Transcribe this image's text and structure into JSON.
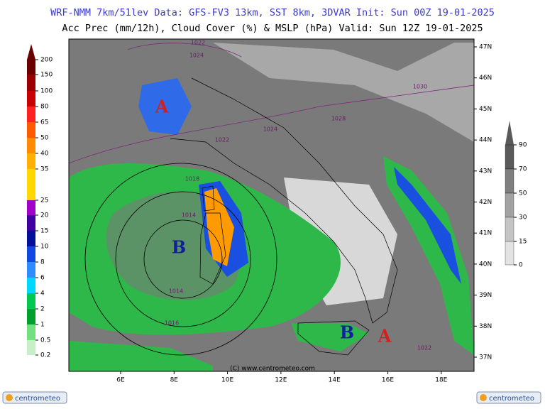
{
  "header": {
    "line1": "WRF-NMM 7km/51lev  Data: GFS-FV3 13km, SST 8km, 3DVAR  Init: Sun 00Z 19-01-2025",
    "line2": "Acc Prec (mm/12h), Cloud Cover (%) & MSLP (hPa)  Valid: Sun 12Z 19-01-2025"
  },
  "precip_scale": {
    "labels": [
      200,
      150,
      100,
      80,
      65,
      50,
      40,
      35,
      25,
      20,
      15,
      10,
      8,
      6,
      4,
      2,
      1,
      0.5,
      0.2
    ]
  },
  "cloud_scale": {
    "labels": [
      90,
      70,
      50,
      30,
      15,
      0
    ]
  },
  "map": {
    "lon_labels": [
      "6E",
      "8E",
      "10E",
      "12E",
      "14E",
      "16E",
      "18E"
    ],
    "lat_labels": [
      "47N",
      "46N",
      "45N",
      "44N",
      "43N",
      "42N",
      "41N",
      "40N",
      "39N",
      "38N",
      "37N"
    ],
    "isobar_labels": [
      "1022",
      "1024",
      "1030",
      "1028",
      "1024",
      "1022",
      "1018",
      "1014",
      "1014",
      "1016",
      "1022"
    ],
    "pressure_centers": [
      "A",
      "B",
      "B",
      "A"
    ],
    "credit": "(C) www.centrometeo.com"
  },
  "logos": [
    "centrometeo",
    "centrometeo"
  ]
}
